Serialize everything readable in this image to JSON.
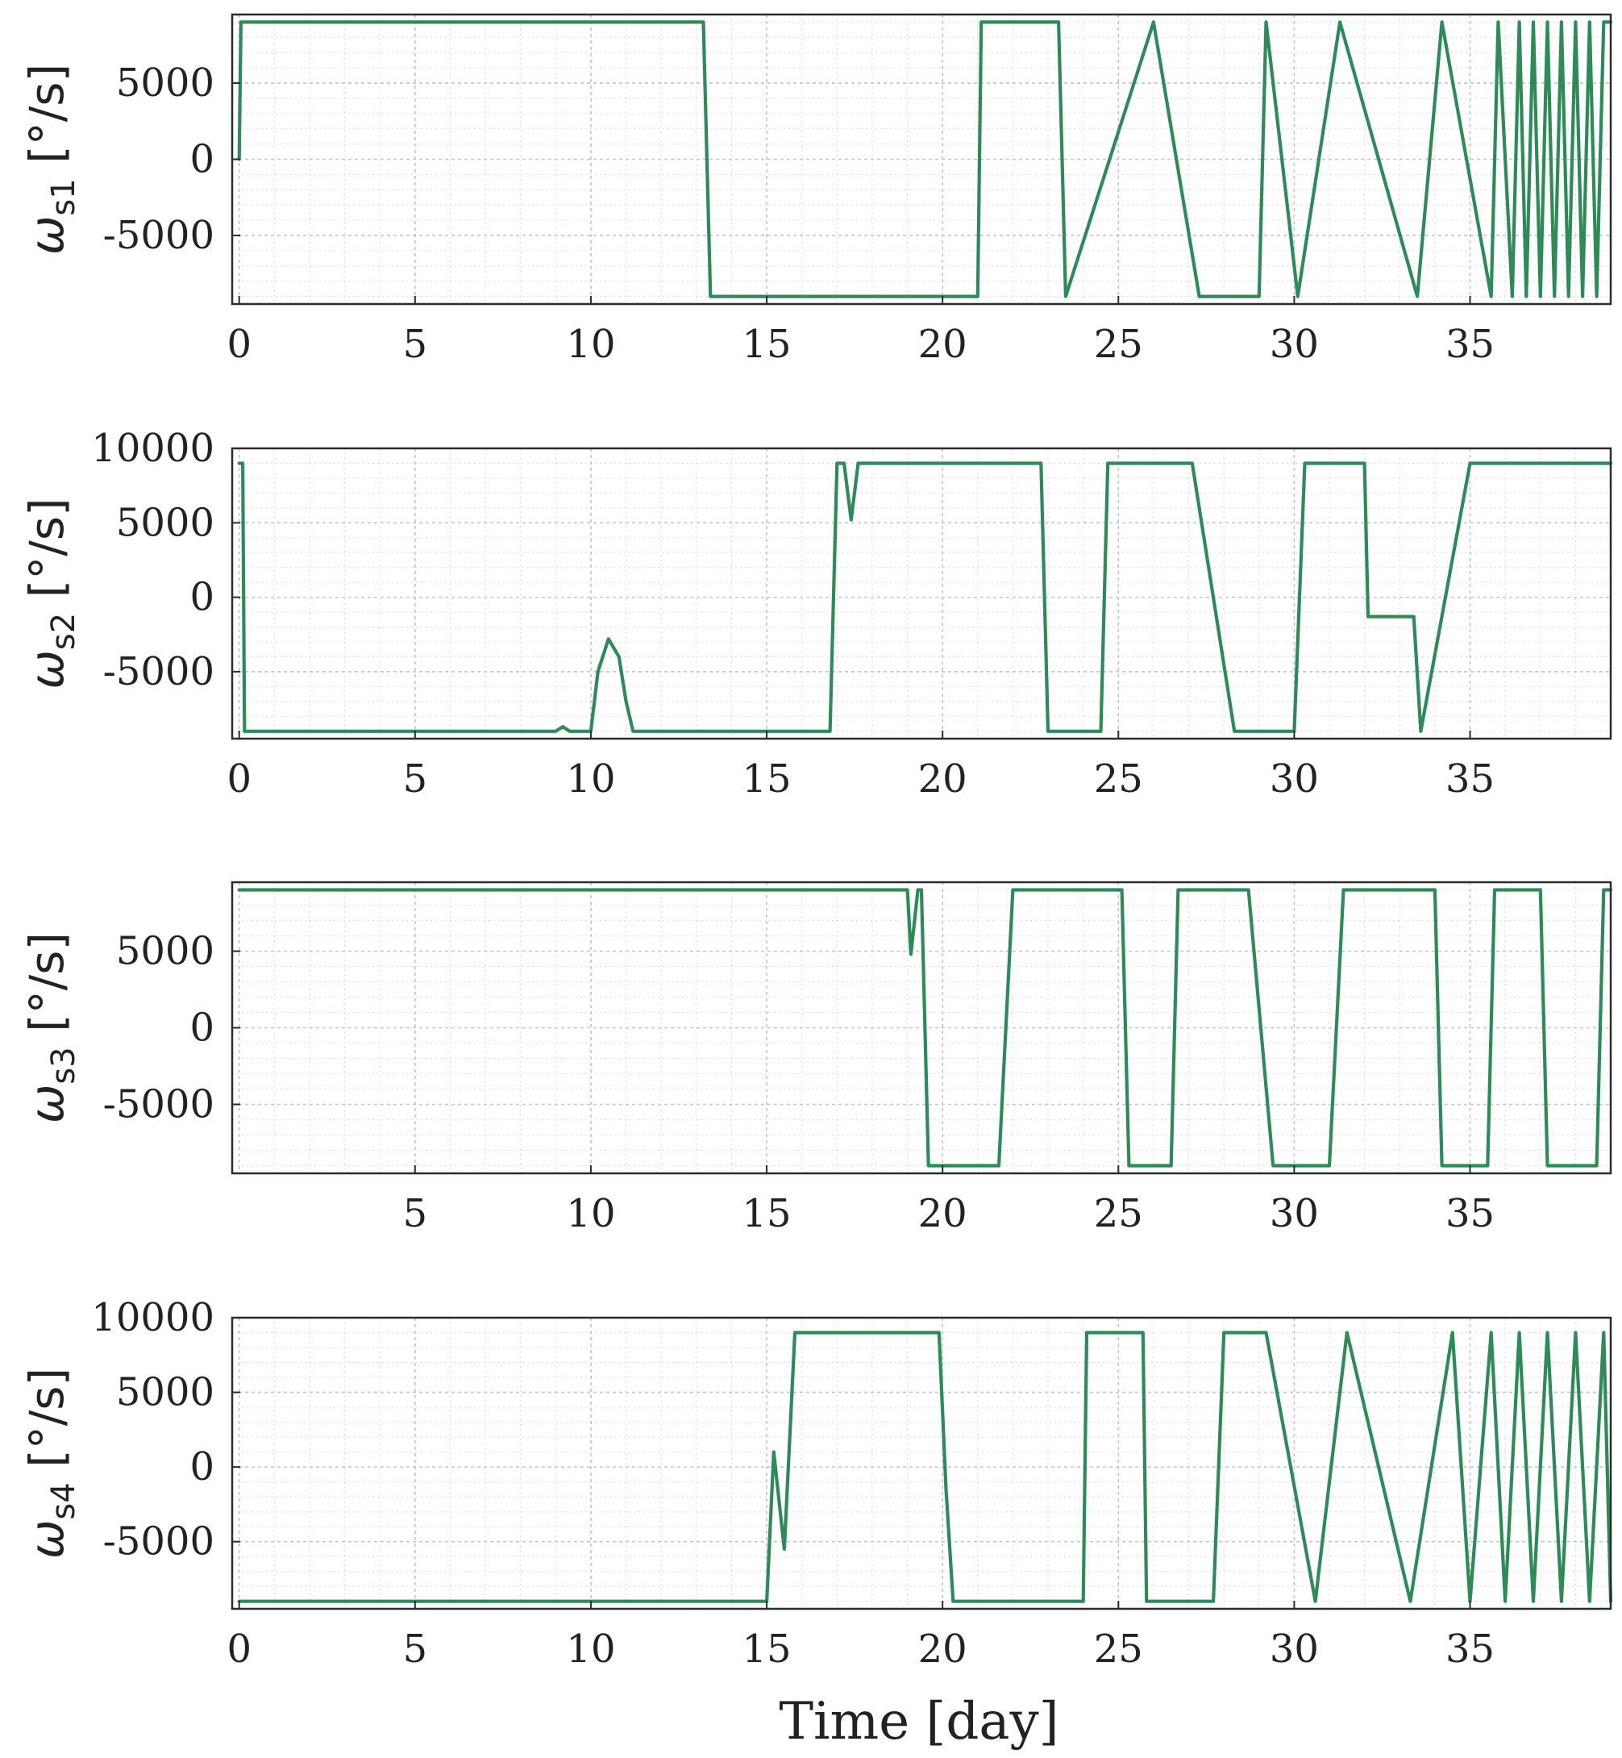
{
  "figure": {
    "xlabel": "Time [day]",
    "line_color": "#2e8b57"
  },
  "chart_data": [
    {
      "type": "line",
      "ylabel_main": "ω",
      "ylabel_sub": "s1",
      "ylabel_unit": " [°/s]",
      "xlim": [
        -0.2,
        39.0
      ],
      "ylim": [
        -9500,
        9500
      ],
      "xticks": [
        "0",
        "5",
        "10",
        "15",
        "20",
        "25",
        "30",
        "35"
      ],
      "yticks": [
        "5000",
        "0",
        "-5000"
      ],
      "series": [
        {
          "x": [
            0,
            0.05,
            13.2,
            13.4,
            21.0,
            21.1,
            23.3,
            23.5,
            26.0,
            27.3,
            29.0,
            29.2,
            30.1,
            31.3,
            33.5,
            34.2,
            35.6,
            35.8,
            36.2,
            36.4,
            36.6,
            36.8,
            37.0,
            37.2,
            37.4,
            37.6,
            37.8,
            38.0,
            38.2,
            38.4,
            38.6,
            38.8,
            39.0
          ],
          "y": [
            0,
            9000,
            9000,
            -9000,
            -9000,
            9000,
            9000,
            -9000,
            9000,
            -9000,
            -9000,
            9000,
            -9000,
            9000,
            -9000,
            9000,
            -9000,
            9000,
            -9000,
            9000,
            -9000,
            9000,
            -9000,
            9000,
            -9000,
            9000,
            -9000,
            9000,
            -9000,
            9000,
            -9000,
            9000,
            9000
          ]
        }
      ]
    },
    {
      "type": "line",
      "ylabel_main": "ω",
      "ylabel_sub": "s2",
      "ylabel_unit": " [°/s]",
      "xlim": [
        -0.2,
        39.0
      ],
      "ylim": [
        -9500,
        10000
      ],
      "xticks": [
        "0",
        "5",
        "10",
        "15",
        "20",
        "25",
        "30",
        "35"
      ],
      "yticks": [
        "10000",
        "5000",
        "0",
        "-5000"
      ],
      "series": [
        {
          "x": [
            0,
            0.1,
            0.15,
            9.0,
            9.2,
            9.4,
            10.0,
            10.2,
            10.5,
            10.8,
            11.0,
            11.2,
            16.8,
            17.0,
            17.2,
            17.4,
            17.6,
            22.8,
            23.0,
            24.5,
            24.7,
            27.1,
            28.3,
            30.0,
            30.3,
            32.0,
            32.1,
            33.4,
            33.6,
            35.0,
            36.5,
            38.0,
            39.0
          ],
          "y": [
            9000,
            9000,
            -9000,
            -9000,
            -8700,
            -9000,
            -9000,
            -5000,
            -2800,
            -4000,
            -7000,
            -9000,
            -9000,
            9000,
            9000,
            5200,
            9000,
            9000,
            -9000,
            -9000,
            9000,
            9000,
            -9000,
            -9000,
            9000,
            9000,
            -1300,
            -1300,
            -9000,
            9000,
            9000,
            9000,
            9000
          ]
        }
      ]
    },
    {
      "type": "line",
      "ylabel_main": "ω",
      "ylabel_sub": "s3",
      "ylabel_unit": " [°/s]",
      "xlim": [
        -0.2,
        39.0
      ],
      "ylim": [
        -9500,
        9500
      ],
      "xticks": [
        "5",
        "10",
        "15",
        "20",
        "25",
        "30",
        "35"
      ],
      "yticks": [
        "5000",
        "0",
        "-5000"
      ],
      "series": [
        {
          "x": [
            0,
            19.0,
            19.1,
            19.3,
            19.4,
            19.6,
            21.6,
            21.8,
            22.0,
            25.1,
            25.3,
            26.5,
            26.7,
            28.7,
            29.4,
            31.0,
            31.4,
            34.0,
            34.2,
            35.5,
            35.7,
            37.0,
            37.2,
            38.6,
            38.8,
            39.0
          ],
          "y": [
            9000,
            9000,
            4800,
            9000,
            9000,
            -9000,
            -9000,
            0,
            9000,
            9000,
            -9000,
            -9000,
            9000,
            9000,
            -9000,
            -9000,
            9000,
            9000,
            -9000,
            -9000,
            9000,
            9000,
            -9000,
            -9000,
            9000,
            9000
          ]
        }
      ]
    },
    {
      "type": "line",
      "ylabel_main": "ω",
      "ylabel_sub": "s4",
      "ylabel_unit": " [°/s]",
      "xlim": [
        -0.2,
        39.0
      ],
      "ylim": [
        -9500,
        10000
      ],
      "xticks": [
        "0",
        "5",
        "10",
        "15",
        "20",
        "25",
        "30",
        "35"
      ],
      "yticks": [
        "10000",
        "5000",
        "0",
        "-5000"
      ],
      "series": [
        {
          "x": [
            0,
            15.0,
            15.2,
            15.5,
            15.8,
            19.9,
            20.1,
            20.3,
            20.5,
            24.0,
            24.1,
            25.7,
            25.8,
            27.7,
            28.0,
            29.2,
            30.6,
            31.5,
            33.3,
            34.5,
            35.0,
            35.6,
            36.0,
            36.4,
            36.8,
            37.2,
            37.6,
            38.0,
            38.4,
            38.8,
            39.0
          ],
          "y": [
            -9000,
            -9000,
            1000,
            -5500,
            9000,
            9000,
            -1500,
            -9000,
            -9000,
            -9000,
            9000,
            9000,
            -9000,
            -9000,
            9000,
            9000,
            -9000,
            9000,
            -9000,
            9000,
            -9000,
            9000,
            -9000,
            9000,
            -9000,
            9000,
            -9000,
            9000,
            -9000,
            9000,
            -9000
          ]
        }
      ]
    }
  ]
}
